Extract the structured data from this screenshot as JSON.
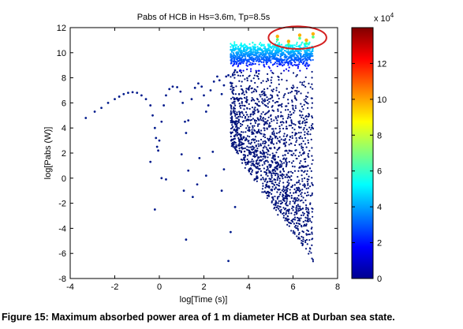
{
  "chart_data": {
    "type": "scatter",
    "title": "Pabs of HCB in Hs=3.6m, Tp=8.5s",
    "xlabel": "log[Time (s)]",
    "ylabel": "log[Pabs (W)]",
    "xlim": [
      -4,
      8
    ],
    "ylim": [
      -8,
      12
    ],
    "xticks": [
      "-4",
      "-2",
      "0",
      "2",
      "4",
      "6",
      "8"
    ],
    "yticks": [
      "-8",
      "-6",
      "-4",
      "-2",
      "0",
      "2",
      "4",
      "6",
      "8",
      "10",
      "12"
    ],
    "grid": false,
    "colorbar": {
      "colormap": "jet",
      "range": [
        0,
        14
      ],
      "ticks": [
        "0",
        "2",
        "4",
        "6",
        "8",
        "10",
        "12"
      ],
      "multiplier": "x 10",
      "exponent": "4"
    },
    "annotation": {
      "shape": "ellipse",
      "color": "#d42020",
      "center": [
        6.2,
        11.2
      ],
      "rx": 1.3,
      "ry": 0.9
    },
    "series": [
      {
        "points": [
          [
            -3.3,
            4.8
          ],
          [
            -2.9,
            5.3
          ],
          [
            -2.6,
            5.6
          ],
          [
            -2.3,
            6.0
          ],
          [
            -2.0,
            6.3
          ],
          [
            -1.8,
            6.5
          ],
          [
            -1.6,
            6.7
          ],
          [
            -1.4,
            6.8
          ],
          [
            -1.2,
            6.85
          ],
          [
            -1.0,
            6.8
          ],
          [
            -0.8,
            6.6
          ],
          [
            -0.6,
            6.3
          ],
          [
            -0.4,
            5.8
          ],
          [
            -0.3,
            5.0
          ],
          [
            -0.2,
            4.0
          ],
          [
            -0.15,
            3.2
          ],
          [
            -0.1,
            2.5
          ],
          [
            -0.05,
            2.2
          ],
          [
            0.0,
            3.0
          ],
          [
            0.1,
            4.5
          ],
          [
            0.2,
            5.8
          ],
          [
            0.3,
            6.6
          ],
          [
            0.45,
            7.1
          ],
          [
            0.6,
            7.3
          ],
          [
            0.8,
            7.25
          ],
          [
            0.95,
            6.9
          ],
          [
            1.05,
            6.0
          ],
          [
            1.15,
            4.5
          ],
          [
            1.2,
            3.6
          ],
          [
            1.3,
            4.6
          ],
          [
            1.45,
            6.3
          ],
          [
            1.6,
            7.2
          ],
          [
            1.75,
            7.55
          ],
          [
            1.9,
            7.3
          ],
          [
            2.0,
            6.6
          ],
          [
            2.1,
            5.3
          ],
          [
            2.2,
            5.8
          ],
          [
            2.3,
            7.0
          ],
          [
            2.45,
            7.7
          ],
          [
            2.6,
            8.1
          ],
          [
            2.7,
            7.8
          ],
          [
            2.8,
            6.7
          ],
          [
            2.9,
            7.4
          ],
          [
            3.0,
            8.1
          ],
          [
            3.1,
            8.2
          ],
          [
            3.2,
            7.6
          ],
          [
            3.3,
            8.2
          ],
          [
            3.4,
            8.6
          ],
          [
            1.1,
            -1.0
          ],
          [
            -0.2,
            -2.5
          ],
          [
            1.2,
            -4.9
          ],
          [
            1.5,
            -1.5
          ],
          [
            2.1,
            0.2
          ],
          [
            2.8,
            -1.0
          ],
          [
            3.2,
            -4.3
          ],
          [
            3.4,
            -2.3
          ],
          [
            3.1,
            -6.6
          ],
          [
            0.3,
            -0.1
          ],
          [
            0.1,
            0.0
          ],
          [
            -0.4,
            1.3
          ],
          [
            1.3,
            0.6
          ],
          [
            1.8,
            1.6
          ],
          [
            2.4,
            2.1
          ],
          [
            2.9,
            0.7
          ],
          [
            1.0,
            1.9
          ],
          [
            1.7,
            -0.5
          ]
        ]
      }
    ]
  },
  "caption": "Figure 15: Maximum absorbed power area of 1 m diameter HCB at Durban sea state."
}
